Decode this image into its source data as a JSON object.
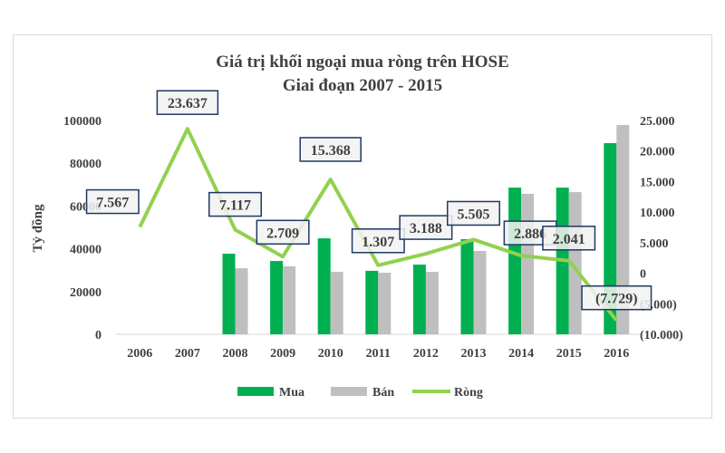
{
  "chart_data": {
    "type": "bar+line",
    "title": "Giá trị khối ngoại mua ròng trên HOSE",
    "subtitle": "Giai đoạn 2007 - 2015",
    "ylabel": "Tỷ đồng",
    "categories": [
      "2006",
      "2007",
      "2008",
      "2009",
      "2010",
      "2011",
      "2012",
      "2013",
      "2014",
      "2015",
      "2016"
    ],
    "ylim": [
      0,
      100000
    ],
    "y2lim": [
      -10000,
      25000
    ],
    "yticks": [
      "0",
      "20000",
      "40000",
      "60000",
      "80000",
      "100000"
    ],
    "y2ticks": [
      "(10.000)",
      "(5.000)",
      "0",
      "5.000",
      "10.000",
      "15.000",
      "20.000",
      "25.000"
    ],
    "series": [
      {
        "name": "Mua",
        "type": "bar",
        "color": "#00b050",
        "values": [
          null,
          null,
          37700,
          34300,
          44900,
          29700,
          32600,
          44500,
          68600,
          68600,
          89400
        ]
      },
      {
        "name": "Bán",
        "type": "bar",
        "color": "#bfbfbf",
        "values": [
          null,
          null,
          30900,
          31800,
          29200,
          28800,
          29200,
          39000,
          65700,
          66500,
          97900
        ]
      },
      {
        "name": "Ròng",
        "type": "line",
        "axis": "right",
        "color": "#92d050",
        "values": [
          7567,
          23637,
          7117,
          2709,
          15368,
          1307,
          3188,
          5505,
          2886,
          2041,
          -7729
        ],
        "labels": [
          "7.567",
          "23.637",
          "7.117",
          "2.709",
          "15.368",
          "1.307",
          "3.188",
          "5.505",
          "2.886",
          "2.041",
          "(7.729)"
        ]
      }
    ],
    "legend": "bottom",
    "grid": false
  }
}
